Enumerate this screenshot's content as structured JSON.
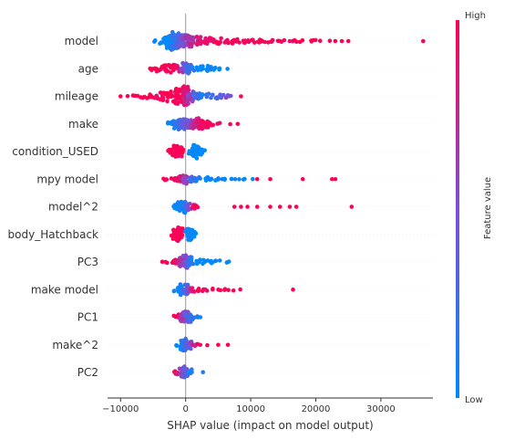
{
  "chart_data": {
    "type": "scatter",
    "subtype": "shap-beeswarm",
    "xlabel": "SHAP value (impact on model output)",
    "xlim": [
      -12000,
      38000
    ],
    "xticks": [
      -10000,
      0,
      10000,
      20000,
      30000
    ],
    "xtick_labels": [
      "−10000",
      "0",
      "10000",
      "20000",
      "30000"
    ],
    "colorbar": {
      "label": "Feature value",
      "high_label": "High",
      "low_label": "Low",
      "high_color": "#ff0052",
      "low_color": "#008bfb"
    },
    "features": [
      {
        "name": "model",
        "dist": [
          [
            -3500,
            6,
            0
          ],
          [
            -3000,
            10,
            0.02
          ],
          [
            -2500,
            14,
            0.05
          ],
          [
            -2000,
            18,
            0.1
          ],
          [
            -1500,
            16,
            0.2
          ],
          [
            -1000,
            14,
            0.3
          ],
          [
            -500,
            12,
            0.45
          ],
          [
            0,
            12,
            0.55
          ],
          [
            500,
            12,
            0.65
          ],
          [
            1000,
            10,
            0.75
          ],
          [
            2000,
            9,
            0.85
          ],
          [
            3000,
            8,
            0.9
          ],
          [
            4000,
            7,
            0.95
          ],
          [
            5000,
            6,
            1
          ],
          [
            6000,
            5,
            1
          ],
          [
            7000,
            5,
            1
          ],
          [
            8000,
            4,
            1
          ],
          [
            9000,
            4,
            1
          ],
          [
            10000,
            3,
            1
          ],
          [
            11000,
            3,
            1
          ],
          [
            12000,
            3,
            1
          ],
          [
            13000,
            3,
            1
          ],
          [
            14000,
            2,
            1
          ],
          [
            15000,
            2,
            1
          ],
          [
            16000,
            2,
            1
          ],
          [
            17000,
            2,
            1
          ],
          [
            18000,
            2,
            1
          ],
          [
            19000,
            2,
            1
          ],
          [
            20000,
            2,
            1
          ],
          [
            21000,
            1,
            1
          ],
          [
            22000,
            1,
            1
          ],
          [
            -5000,
            2,
            0
          ]
        ],
        "outliers": [
          [
            23000,
            1
          ],
          [
            24000,
            1
          ],
          [
            25000,
            1
          ],
          [
            36500,
            1
          ]
        ]
      },
      {
        "name": "age",
        "dist": [
          [
            -5500,
            1,
            1
          ],
          [
            -5000,
            3,
            1
          ],
          [
            -4000,
            6,
            1
          ],
          [
            -3000,
            8,
            1
          ],
          [
            -2000,
            8,
            1
          ],
          [
            -1000,
            6,
            0.9
          ],
          [
            -300,
            8,
            0.6
          ],
          [
            0,
            12,
            0.4
          ],
          [
            500,
            8,
            0.3
          ],
          [
            1000,
            4,
            0.1
          ],
          [
            2000,
            5,
            0
          ],
          [
            3000,
            6,
            0
          ],
          [
            4000,
            5,
            0
          ],
          [
            5000,
            3,
            0
          ],
          [
            6000,
            1,
            0
          ]
        ],
        "outliers": []
      },
      {
        "name": "mileage",
        "dist": [
          [
            -8500,
            2,
            1
          ],
          [
            -7500,
            2,
            1
          ],
          [
            -6500,
            3,
            1
          ],
          [
            -5500,
            4,
            1
          ],
          [
            -4500,
            6,
            1
          ],
          [
            -3500,
            8,
            1
          ],
          [
            -2500,
            12,
            1
          ],
          [
            -1500,
            15,
            1
          ],
          [
            -500,
            18,
            1
          ],
          [
            0,
            20,
            0.85
          ],
          [
            700,
            12,
            0.6
          ],
          [
            1500,
            8,
            0.35
          ],
          [
            2500,
            6,
            0.15
          ],
          [
            3500,
            6,
            0.2
          ],
          [
            4500,
            5,
            0.3
          ],
          [
            5500,
            4,
            0.4
          ],
          [
            6500,
            3,
            0.5
          ]
        ],
        "outliers": [
          [
            -10000,
            1
          ],
          [
            8500,
            1
          ]
        ]
      },
      {
        "name": "make",
        "dist": [
          [
            -2500,
            3,
            0
          ],
          [
            -2000,
            6,
            0.05
          ],
          [
            -1500,
            10,
            0.1
          ],
          [
            -1000,
            12,
            0.2
          ],
          [
            -500,
            12,
            0.3
          ],
          [
            0,
            10,
            0.4
          ],
          [
            500,
            8,
            0.55
          ],
          [
            1000,
            6,
            0.65
          ],
          [
            1500,
            10,
            0.75
          ],
          [
            2000,
            12,
            0.85
          ],
          [
            2500,
            10,
            0.9
          ],
          [
            3000,
            8,
            0.95
          ],
          [
            3500,
            5,
            1
          ],
          [
            4000,
            3,
            1
          ],
          [
            5000,
            2,
            1
          ],
          [
            6500,
            1,
            1
          ]
        ],
        "outliers": [
          [
            8000,
            1
          ]
        ]
      },
      {
        "name": "condition_USED",
        "dist": [
          [
            -2500,
            4,
            1
          ],
          [
            -2000,
            8,
            1
          ],
          [
            -1500,
            12,
            1
          ],
          [
            -1000,
            10,
            1
          ],
          [
            -600,
            4,
            1
          ],
          [
            900,
            6,
            0
          ],
          [
            1200,
            12,
            0
          ],
          [
            1500,
            14,
            0
          ],
          [
            1800,
            12,
            0
          ],
          [
            2100,
            8,
            0
          ],
          [
            2500,
            4,
            0
          ]
        ],
        "outliers": []
      },
      {
        "name": "mpy model",
        "dist": [
          [
            -3500,
            1,
            1
          ],
          [
            -3000,
            2,
            1
          ],
          [
            -2000,
            3,
            1
          ],
          [
            -1000,
            5,
            0.9
          ],
          [
            -500,
            8,
            0.75
          ],
          [
            0,
            10,
            0.6
          ],
          [
            500,
            6,
            0.4
          ],
          [
            1000,
            5,
            0.2
          ],
          [
            2000,
            4,
            0.05
          ],
          [
            3000,
            4,
            0
          ],
          [
            4000,
            3,
            0
          ],
          [
            5000,
            3,
            0
          ],
          [
            6000,
            3,
            0
          ],
          [
            7000,
            2,
            0
          ],
          [
            8000,
            2,
            0
          ],
          [
            9000,
            2,
            0
          ],
          [
            10000,
            1,
            0
          ]
        ],
        "outliers": [
          [
            11000,
            1
          ],
          [
            13000,
            1
          ],
          [
            18000,
            1
          ],
          [
            22500,
            1
          ],
          [
            23000,
            1
          ]
        ]
      },
      {
        "name": "model^2",
        "dist": [
          [
            -1500,
            4,
            0
          ],
          [
            -1000,
            10,
            0.05
          ],
          [
            -500,
            12,
            0.1
          ],
          [
            0,
            10,
            0.2
          ],
          [
            500,
            6,
            0.5
          ],
          [
            1000,
            4,
            0.8
          ],
          [
            1500,
            3,
            1
          ],
          [
            2000,
            2,
            1
          ]
        ],
        "outliers": [
          [
            7500,
            1
          ],
          [
            8500,
            1
          ],
          [
            9500,
            1
          ],
          [
            11000,
            1
          ],
          [
            13000,
            1
          ],
          [
            14500,
            1
          ],
          [
            16000,
            1
          ],
          [
            17000,
            1
          ],
          [
            25500,
            1
          ]
        ]
      },
      {
        "name": "body_Hatchback",
        "dist": [
          [
            -1800,
            4,
            1
          ],
          [
            -1500,
            10,
            1
          ],
          [
            -1200,
            14,
            1
          ],
          [
            -900,
            12,
            1
          ],
          [
            -600,
            6,
            1
          ],
          [
            300,
            6,
            0
          ],
          [
            600,
            12,
            0
          ],
          [
            900,
            10,
            0
          ],
          [
            1200,
            6,
            0
          ]
        ],
        "outliers": []
      },
      {
        "name": "PC3",
        "dist": [
          [
            -3500,
            1,
            1
          ],
          [
            -3000,
            2,
            1
          ],
          [
            -2000,
            3,
            1
          ],
          [
            -1500,
            5,
            0.95
          ],
          [
            -1000,
            8,
            0.85
          ],
          [
            -500,
            12,
            0.7
          ],
          [
            0,
            14,
            0.5
          ],
          [
            500,
            10,
            0.3
          ],
          [
            1000,
            6,
            0.1
          ],
          [
            2000,
            5,
            0
          ],
          [
            3000,
            4,
            0
          ],
          [
            4000,
            4,
            0
          ],
          [
            5000,
            3,
            0
          ],
          [
            6000,
            2,
            0
          ],
          [
            7000,
            1,
            0
          ]
        ],
        "outliers": []
      },
      {
        "name": "make model",
        "dist": [
          [
            -1500,
            4,
            0
          ],
          [
            -1000,
            8,
            0.05
          ],
          [
            -500,
            12,
            0.1
          ],
          [
            0,
            10,
            0.3
          ],
          [
            500,
            6,
            0.6
          ],
          [
            1000,
            4,
            0.85
          ],
          [
            2000,
            3,
            1
          ],
          [
            3000,
            3,
            1
          ],
          [
            4000,
            2,
            1
          ],
          [
            5000,
            2,
            1
          ],
          [
            6000,
            2,
            1
          ],
          [
            7000,
            2,
            1
          ],
          [
            8000,
            1,
            1
          ]
        ],
        "outliers": [
          [
            16500,
            1
          ]
        ]
      },
      {
        "name": "PC1",
        "dist": [
          [
            -1500,
            3,
            1
          ],
          [
            -1000,
            6,
            0.9
          ],
          [
            -500,
            8,
            0.7
          ],
          [
            0,
            12,
            0.5
          ],
          [
            500,
            10,
            0.35
          ],
          [
            1000,
            6,
            0.2
          ],
          [
            1500,
            3,
            0.1
          ],
          [
            2000,
            1,
            0
          ]
        ],
        "outliers": []
      },
      {
        "name": "make^2",
        "dist": [
          [
            -1000,
            4,
            0
          ],
          [
            -500,
            10,
            0.1
          ],
          [
            0,
            12,
            0.2
          ],
          [
            500,
            8,
            0.4
          ],
          [
            1000,
            4,
            0.6
          ],
          [
            1500,
            3,
            0.8
          ],
          [
            2000,
            2,
            0.95
          ],
          [
            3000,
            1,
            1
          ]
        ],
        "outliers": [
          [
            5000,
            1
          ],
          [
            6500,
            1
          ]
        ]
      },
      {
        "name": "PC2",
        "dist": [
          [
            -1500,
            3,
            1
          ],
          [
            -1000,
            4,
            0.8
          ],
          [
            -500,
            8,
            0.6
          ],
          [
            0,
            12,
            0.4
          ],
          [
            500,
            6,
            0.2
          ],
          [
            1000,
            2,
            0
          ],
          [
            2500,
            1,
            0
          ]
        ],
        "outliers": []
      }
    ]
  }
}
